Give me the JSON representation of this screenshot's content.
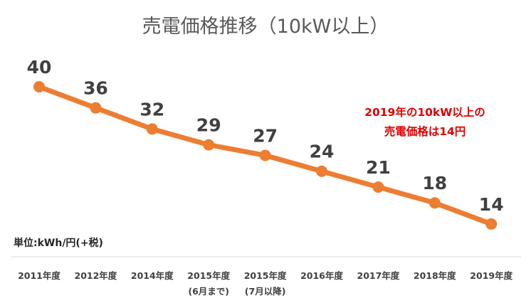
{
  "chart_data": {
    "type": "line",
    "title": "売電価格推移（10kW以上）",
    "unit_label": "単位:kWh/円(+税)",
    "categories": [
      [
        "2011年度"
      ],
      [
        "2012年度"
      ],
      [
        "2014年度"
      ],
      [
        "2015年度",
        "(6月まで)"
      ],
      [
        "2015年度",
        "(7月以降)"
      ],
      [
        "2016年度"
      ],
      [
        "2017年度"
      ],
      [
        "2018年度"
      ],
      [
        "2019年度"
      ]
    ],
    "series": [
      {
        "values": [
          40,
          36,
          32,
          29,
          27,
          24,
          21,
          18,
          14
        ]
      }
    ],
    "annotation": [
      "2019年の10kW以上の",
      "売電価格は14円"
    ],
    "colors": {
      "line": "#ed7d31",
      "annotation": "#e00000"
    },
    "grid": false,
    "legend": "none"
  }
}
